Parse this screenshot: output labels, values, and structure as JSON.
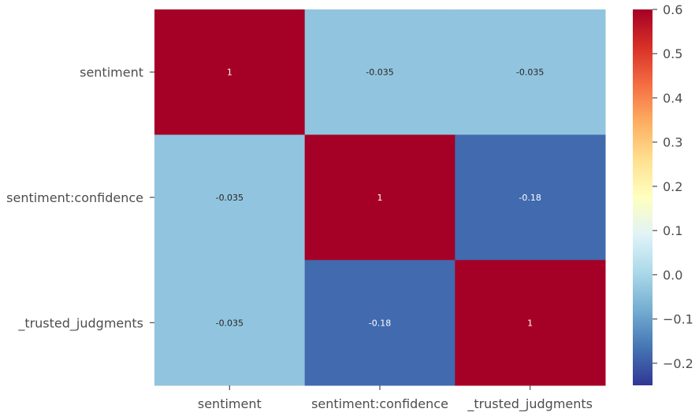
{
  "chart_data": {
    "type": "heatmap",
    "title": "",
    "xlabel": "",
    "ylabel": "",
    "rows": [
      "sentiment",
      "sentiment:confidence",
      "_trusted_judgments"
    ],
    "columns": [
      "sentiment",
      "sentiment:confidence",
      "_trusted_judgments"
    ],
    "values": [
      [
        1,
        -0.035,
        -0.035
      ],
      [
        -0.035,
        1,
        -0.18
      ],
      [
        -0.035,
        -0.18,
        1
      ]
    ],
    "cell_labels": [
      [
        "1",
        "-0.035",
        "-0.035"
      ],
      [
        "-0.035",
        "1",
        "-0.18"
      ],
      [
        "-0.035",
        "-0.18",
        "1"
      ]
    ],
    "colormap": "RdYlBu_r",
    "colorbar": {
      "vmin": -0.25,
      "vmax": 0.6,
      "ticks": [
        -0.2,
        -0.1,
        0.0,
        0.1,
        0.2,
        0.3,
        0.4,
        0.5,
        0.6
      ],
      "tick_labels": [
        "−0.2",
        "−0.1",
        "0.0",
        "0.1",
        "0.2",
        "0.3",
        "0.4",
        "0.5",
        "0.6"
      ]
    },
    "grid": false,
    "legend": "colorbar-right"
  }
}
